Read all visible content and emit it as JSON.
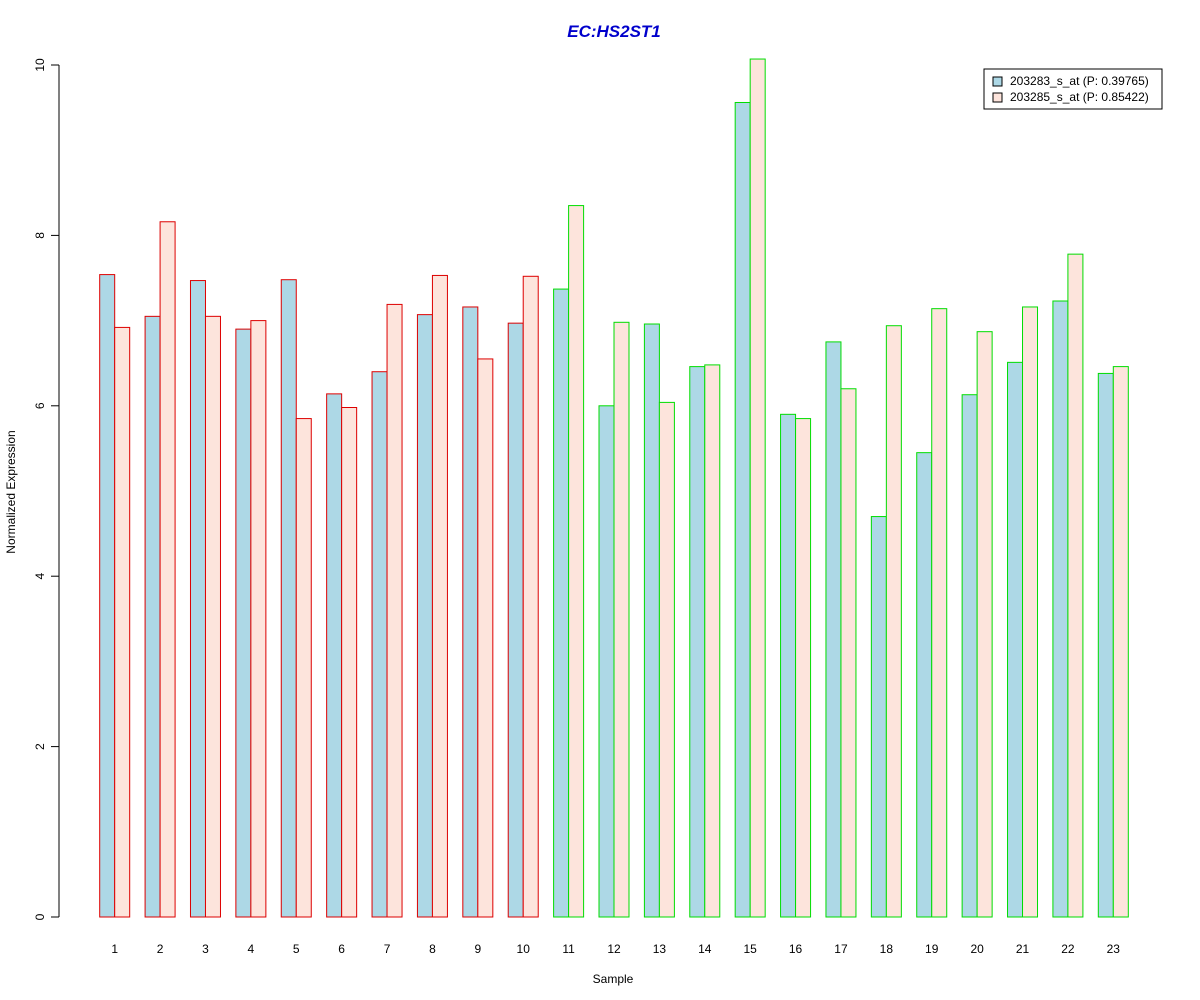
{
  "chart_data": {
    "type": "bar",
    "title": "EC:HS2ST1",
    "xlabel": "Sample",
    "ylabel": "Normalized Expression",
    "ylim": [
      0,
      10
    ],
    "yticks": [
      0,
      2,
      4,
      6,
      8,
      10
    ],
    "categories": [
      "1",
      "2",
      "3",
      "4",
      "5",
      "6",
      "7",
      "8",
      "9",
      "10",
      "11",
      "12",
      "13",
      "14",
      "15",
      "16",
      "17",
      "18",
      "19",
      "20",
      "21",
      "22",
      "23"
    ],
    "group_border_colors": [
      "#dd0000",
      "#dd0000",
      "#dd0000",
      "#dd0000",
      "#dd0000",
      "#dd0000",
      "#dd0000",
      "#dd0000",
      "#dd0000",
      "#dd0000",
      "#00dd00",
      "#00dd00",
      "#00dd00",
      "#00dd00",
      "#00dd00",
      "#00dd00",
      "#00dd00",
      "#00dd00",
      "#00dd00",
      "#00dd00",
      "#00dd00",
      "#00dd00",
      "#00dd00"
    ],
    "series": [
      {
        "name": "203283_s_at (P: 0.39765)",
        "color": "#add8e6",
        "values": [
          7.54,
          7.05,
          7.47,
          6.9,
          7.48,
          6.14,
          6.4,
          7.07,
          7.16,
          6.97,
          7.37,
          6.0,
          6.96,
          6.46,
          9.56,
          5.9,
          6.75,
          4.7,
          5.45,
          6.13,
          6.51,
          7.23,
          6.38
        ]
      },
      {
        "name": "203285_s_at (P: 0.85422)",
        "color": "#fde4dc",
        "values": [
          6.92,
          8.16,
          7.05,
          7.0,
          5.85,
          5.98,
          7.19,
          7.53,
          6.55,
          7.52,
          8.35,
          6.98,
          6.04,
          6.48,
          10.07,
          5.85,
          6.2,
          6.94,
          7.14,
          6.87,
          7.16,
          7.78,
          6.46
        ]
      }
    ],
    "legend_position": "top-right",
    "grid": false
  }
}
